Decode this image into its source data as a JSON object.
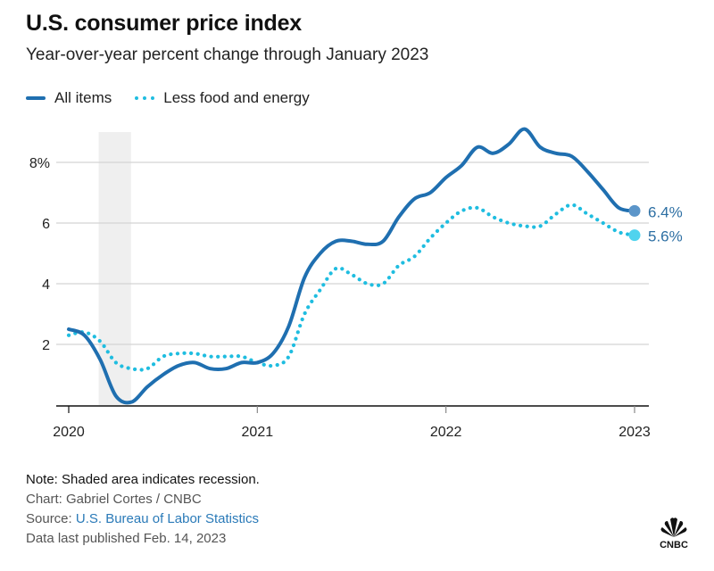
{
  "header": {
    "title": "U.S. consumer price index",
    "subtitle": "Year-over-year percent change through January 2023"
  },
  "legend": [
    {
      "label": "All items",
      "style": "solid",
      "color": "#1f6fb0"
    },
    {
      "label": "Less food and energy",
      "style": "dotted",
      "color": "#1fbde0"
    }
  ],
  "chart_data": {
    "type": "line",
    "title": "U.S. consumer price index",
    "subtitle": "Year-over-year percent change through January 2023",
    "xlabel": "",
    "ylabel": "",
    "x_start": "2020-01",
    "x_end": "2023-01",
    "x_ticks": [
      "2020",
      "2021",
      "2022",
      "2023"
    ],
    "y_ticks": [
      {
        "value": 2,
        "label": "2"
      },
      {
        "value": 4,
        "label": "4"
      },
      {
        "value": 6,
        "label": "6"
      },
      {
        "value": 8,
        "label": "8%"
      }
    ],
    "ylim": [
      0,
      9.2
    ],
    "grid": true,
    "legend_position": "top-left",
    "shaded_regions": [
      {
        "label": "Recession",
        "start": "2020-02",
        "end": "2020-04",
        "color": "#efefef"
      }
    ],
    "months": [
      "2020-01",
      "2020-02",
      "2020-03",
      "2020-04",
      "2020-05",
      "2020-06",
      "2020-07",
      "2020-08",
      "2020-09",
      "2020-10",
      "2020-11",
      "2020-12",
      "2021-01",
      "2021-02",
      "2021-03",
      "2021-04",
      "2021-05",
      "2021-06",
      "2021-07",
      "2021-08",
      "2021-09",
      "2021-10",
      "2021-11",
      "2021-12",
      "2022-01",
      "2022-02",
      "2022-03",
      "2022-04",
      "2022-05",
      "2022-06",
      "2022-07",
      "2022-08",
      "2022-09",
      "2022-10",
      "2022-11",
      "2022-12",
      "2023-01"
    ],
    "series": [
      {
        "name": "All items",
        "color": "#1f6fb0",
        "end_dot_color": "#5b95c9",
        "end_label": "6.4%",
        "style": "solid",
        "values": [
          2.5,
          2.3,
          1.5,
          0.3,
          0.1,
          0.6,
          1.0,
          1.3,
          1.4,
          1.2,
          1.2,
          1.4,
          1.4,
          1.7,
          2.6,
          4.2,
          5.0,
          5.4,
          5.4,
          5.3,
          5.4,
          6.2,
          6.8,
          7.0,
          7.5,
          7.9,
          8.5,
          8.3,
          8.6,
          9.1,
          8.5,
          8.3,
          8.2,
          7.7,
          7.1,
          6.5,
          6.4
        ]
      },
      {
        "name": "Less food and energy",
        "color": "#1fbde0",
        "end_dot_color": "#4fd3ee",
        "end_label": "5.6%",
        "style": "dotted",
        "values": [
          2.3,
          2.4,
          2.1,
          1.4,
          1.2,
          1.2,
          1.6,
          1.7,
          1.7,
          1.6,
          1.6,
          1.6,
          1.4,
          1.3,
          1.6,
          3.0,
          3.8,
          4.5,
          4.3,
          4.0,
          4.0,
          4.6,
          4.9,
          5.5,
          6.0,
          6.4,
          6.5,
          6.2,
          6.0,
          5.9,
          5.9,
          6.3,
          6.6,
          6.3,
          6.0,
          5.7,
          5.6
        ]
      }
    ]
  },
  "footer": {
    "note": "Note: Shaded area indicates recession.",
    "credit": "Chart: Gabriel Cortes / CNBC",
    "source_prefix": "Source: ",
    "source_link": "U.S. Bureau of Labor Statistics",
    "published": "Data last published Feb. 14, 2023"
  },
  "branding": {
    "logo_text": "CNBC",
    "logo_icon": "peacock-icon"
  }
}
